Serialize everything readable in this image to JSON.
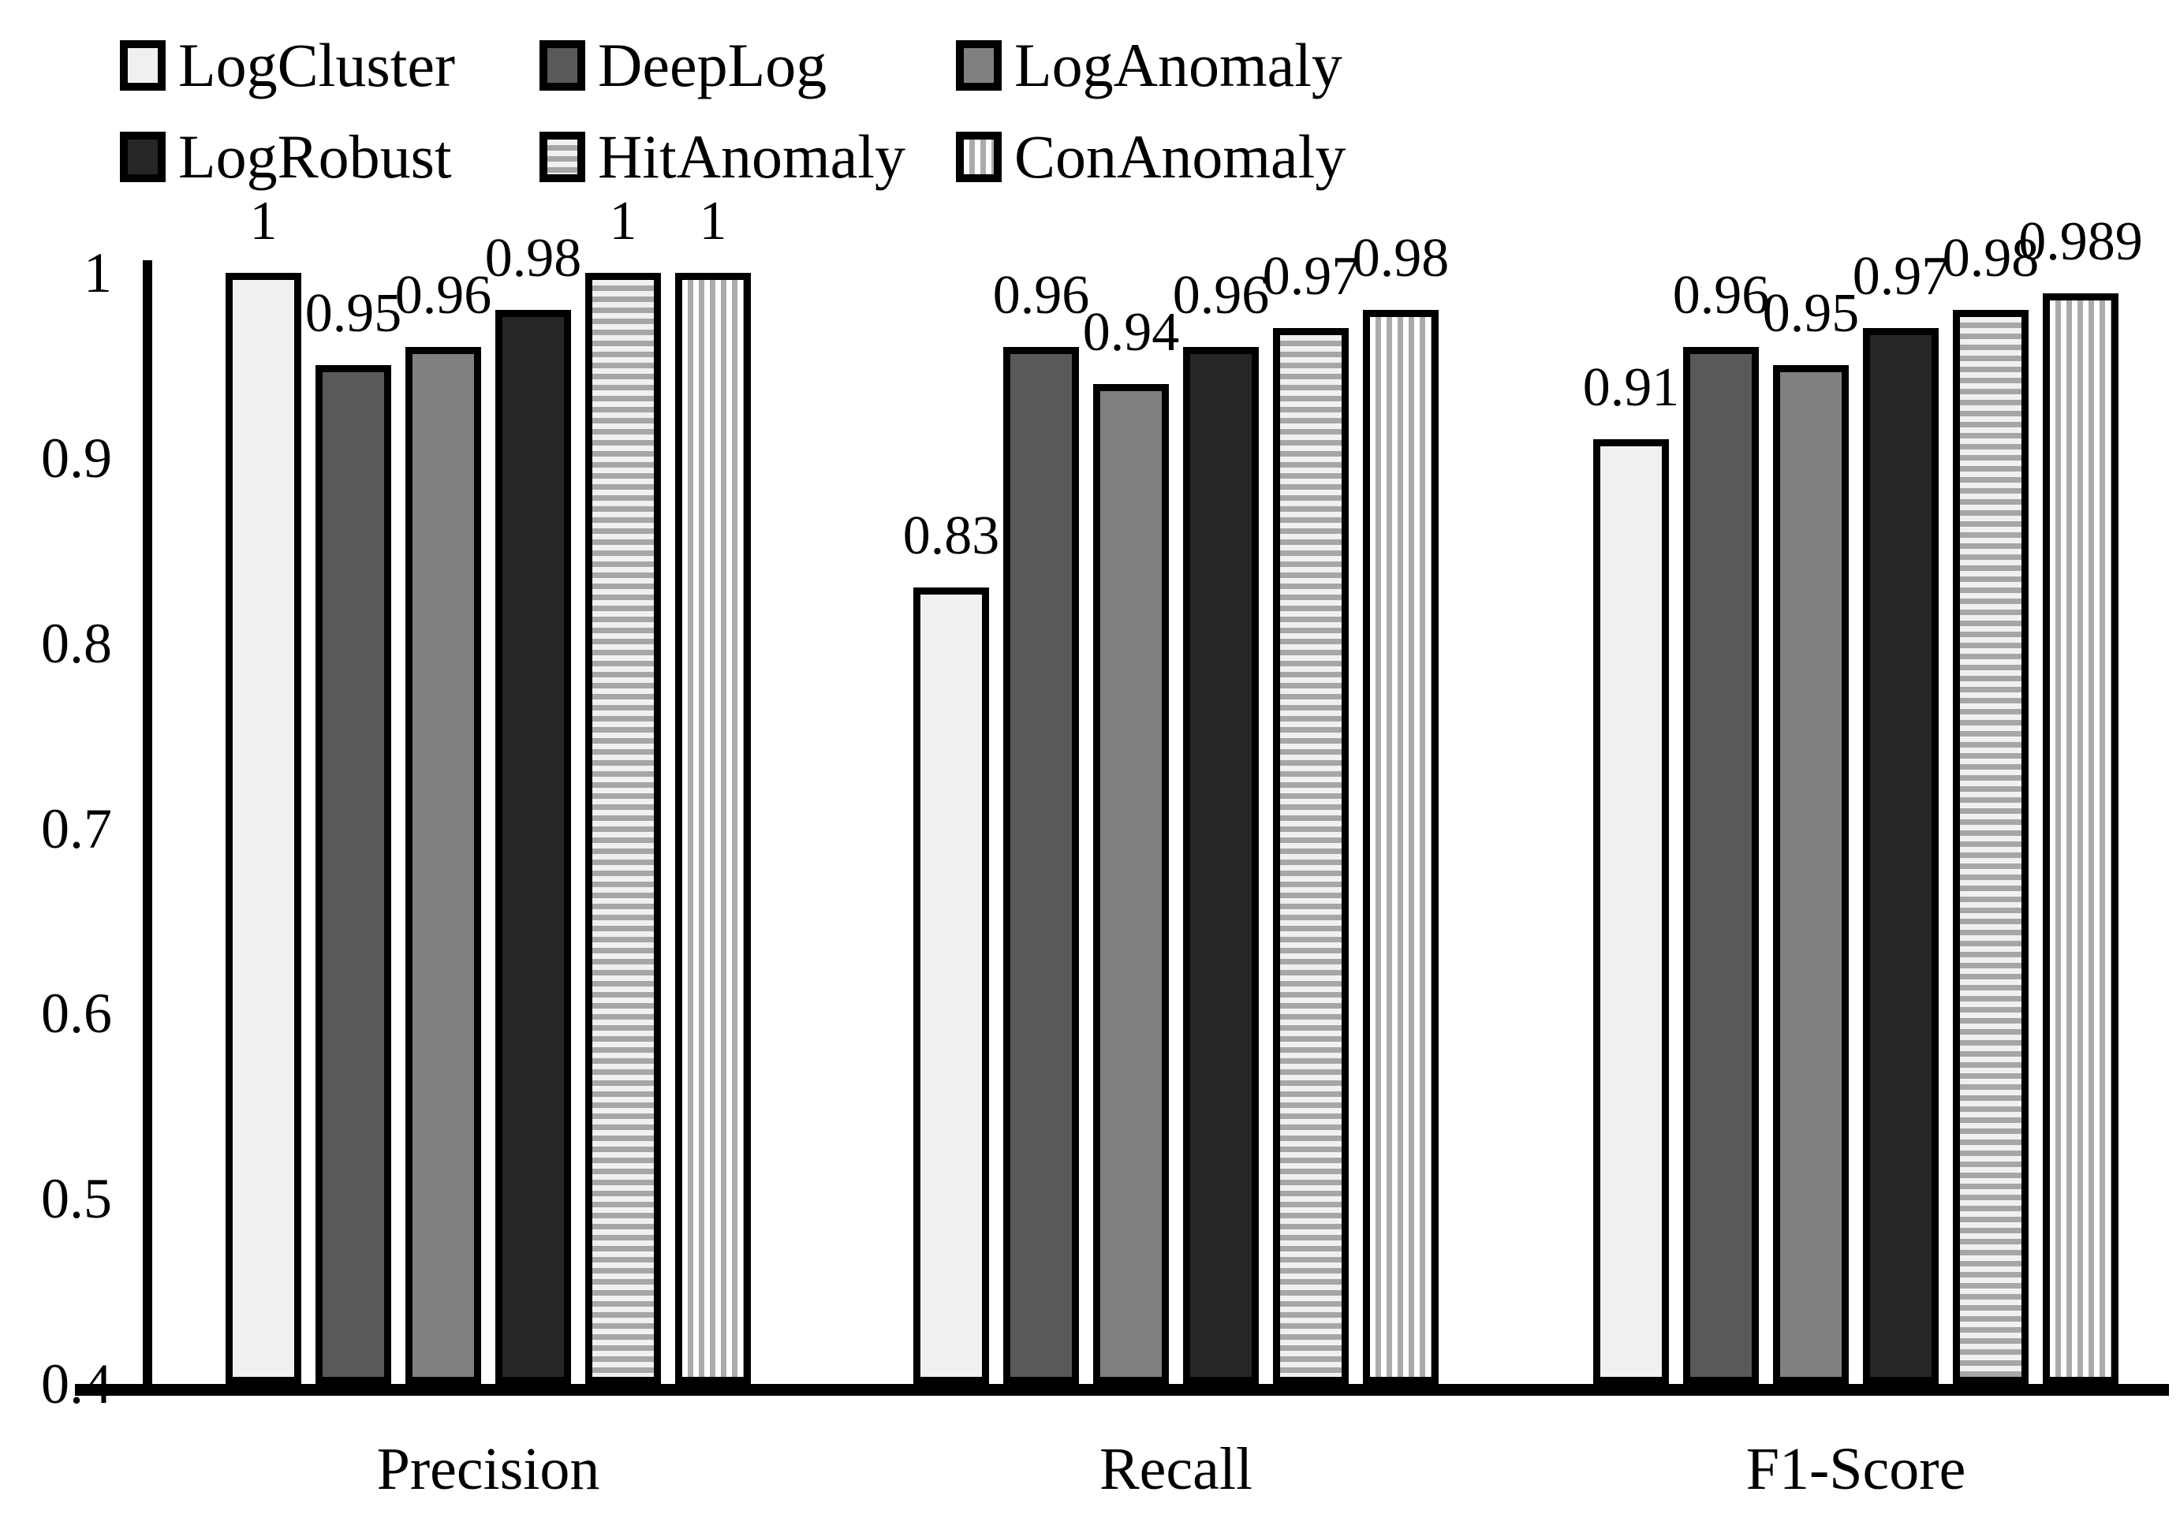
{
  "chart_data": {
    "type": "bar",
    "categories": [
      "Precision",
      "Recall",
      "F1-Score"
    ],
    "series": [
      {
        "name": "LogCluster",
        "values": [
          1,
          0.83,
          0.91
        ],
        "value_labels": [
          "1",
          "0.83",
          "0.91"
        ],
        "pattern": "solid",
        "fill": "#f0f0f0"
      },
      {
        "name": "DeepLog",
        "values": [
          0.95,
          0.96,
          0.96
        ],
        "value_labels": [
          "0.95",
          "0.96",
          "0.96"
        ],
        "pattern": "solid",
        "fill": "#595959"
      },
      {
        "name": "LogAnomaly",
        "values": [
          0.96,
          0.94,
          0.95
        ],
        "value_labels": [
          "0.96",
          "0.94",
          "0.95"
        ],
        "pattern": "solid",
        "fill": "#808080"
      },
      {
        "name": "LogRobust",
        "values": [
          0.98,
          0.96,
          0.97
        ],
        "value_labels": [
          "0.98",
          "0.96",
          "0.97"
        ],
        "pattern": "solid",
        "fill": "#262626"
      },
      {
        "name": "HitAnomaly",
        "values": [
          1,
          0.97,
          0.98
        ],
        "value_labels": [
          "1",
          "0.97",
          "0.98"
        ],
        "pattern": "hstripes",
        "fill": "#f0f0f0",
        "stripe_color": "#a6a6a6"
      },
      {
        "name": "ConAnomaly",
        "values": [
          1,
          0.98,
          0.989
        ],
        "value_labels": [
          "1",
          "0.98",
          "0.989"
        ],
        "pattern": "vstripes",
        "fill": "#ffffff",
        "stripe_color": "#ababab"
      }
    ],
    "ylim": [
      0.4,
      1.0
    ],
    "yticks": [
      1,
      0.9,
      0.8,
      0.7,
      0.6,
      0.5,
      0.4
    ],
    "ytick_labels": [
      "1",
      "0.9",
      "0.8",
      "0.7",
      "0.6",
      "0.5",
      "0.4"
    ],
    "title": "",
    "xlabel": "",
    "ylabel": "",
    "grid": false,
    "legend_position": "top-left",
    "bar_border_color": "#000000",
    "text_color": "#000000",
    "background_color": "#ffffff"
  }
}
